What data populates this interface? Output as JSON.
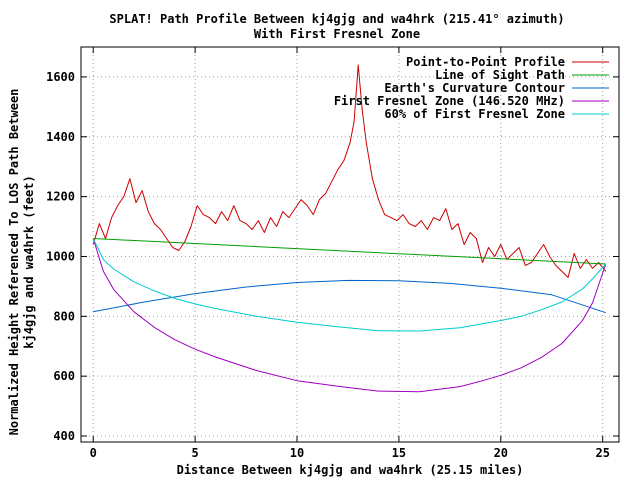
{
  "chart_data": {
    "type": "line",
    "title_line1": "SPLAT! Path Profile Between kj4gjg and wa4hrk (215.41° azimuth)",
    "title_line2": "With First Fresnel Zone",
    "xlabel": "Distance Between kj4gjg and wa4hrk (25.15 miles)",
    "ylabel_line1": "Normalized Height Referenced To LOS Path Between",
    "ylabel_line2": "kj4gjg and wa4hrk (feet)",
    "xlim": [
      -0.6,
      25.8
    ],
    "ylim": [
      380,
      1700
    ],
    "x_ticks": [
      "0",
      "5",
      "10",
      "15",
      "20",
      "25"
    ],
    "y_ticks": [
      "400",
      "600",
      "800",
      "1000",
      "1200",
      "1400",
      "1600"
    ],
    "grid": true,
    "legend_position": "top-right",
    "series": [
      {
        "name": "Point-to-Point Profile",
        "color": "#cc0000",
        "x": [
          0,
          0.3,
          0.6,
          0.9,
          1.2,
          1.5,
          1.8,
          2.1,
          2.4,
          2.7,
          3.0,
          3.3,
          3.6,
          3.9,
          4.2,
          4.5,
          4.8,
          5.1,
          5.4,
          5.7,
          6.0,
          6.3,
          6.6,
          6.9,
          7.2,
          7.5,
          7.8,
          8.1,
          8.4,
          8.7,
          9.0,
          9.3,
          9.6,
          9.9,
          10.2,
          10.5,
          10.8,
          11.1,
          11.4,
          11.7,
          12.0,
          12.3,
          12.6,
          12.8,
          13.0,
          13.2,
          13.4,
          13.7,
          14.0,
          14.3,
          14.6,
          14.9,
          15.2,
          15.5,
          15.8,
          16.1,
          16.4,
          16.7,
          17.0,
          17.3,
          17.6,
          17.9,
          18.2,
          18.5,
          18.8,
          19.1,
          19.4,
          19.7,
          20.0,
          20.3,
          20.6,
          20.9,
          21.2,
          21.5,
          21.8,
          22.1,
          22.4,
          22.7,
          23.0,
          23.3,
          23.6,
          23.9,
          24.2,
          24.5,
          24.8,
          25.15
        ],
        "y": [
          1040,
          1110,
          1060,
          1130,
          1170,
          1200,
          1260,
          1180,
          1220,
          1150,
          1110,
          1090,
          1060,
          1030,
          1020,
          1050,
          1100,
          1170,
          1140,
          1130,
          1110,
          1150,
          1120,
          1170,
          1120,
          1110,
          1090,
          1120,
          1080,
          1130,
          1100,
          1150,
          1130,
          1160,
          1190,
          1170,
          1140,
          1190,
          1210,
          1250,
          1290,
          1320,
          1380,
          1450,
          1640,
          1490,
          1380,
          1260,
          1190,
          1140,
          1130,
          1120,
          1140,
          1110,
          1100,
          1120,
          1090,
          1130,
          1120,
          1160,
          1090,
          1110,
          1040,
          1080,
          1060,
          980,
          1030,
          1000,
          1040,
          990,
          1010,
          1030,
          970,
          980,
          1010,
          1040,
          1000,
          970,
          950,
          930,
          1010,
          960,
          990,
          960,
          980,
          950
        ]
      },
      {
        "name": "Line of Sight Path",
        "color": "#00a000",
        "x": [
          0,
          25.15
        ],
        "y": [
          1060,
          975
        ]
      },
      {
        "name": "Earth's Curvature Contour",
        "color": "#0066cc",
        "x": [
          0,
          2.5,
          5,
          7.5,
          10,
          12.5,
          15,
          17.5,
          20,
          22.5,
          25.15
        ],
        "y": [
          815,
          848,
          876,
          898,
          913,
          920,
          919,
          910,
          894,
          872,
          812
        ]
      },
      {
        "name": "First Fresnel Zone (146.520 MHz)",
        "color": "#a000c0",
        "x": [
          0,
          0.5,
          1,
          2,
          3,
          4,
          5,
          6,
          8,
          10,
          12,
          14,
          16,
          18,
          19,
          20,
          21,
          22,
          23,
          24,
          24.5,
          25.15
        ],
        "y": [
          1060,
          950,
          890,
          815,
          763,
          722,
          690,
          664,
          619,
          585,
          566,
          550,
          548,
          565,
          583,
          603,
          628,
          663,
          709,
          785,
          845,
          975
        ]
      },
      {
        "name": "60% of First Fresnel Zone",
        "color": "#00cccc",
        "x": [
          0,
          0.5,
          1,
          2,
          3,
          4,
          5,
          6,
          8,
          10,
          12,
          14,
          16,
          18,
          19,
          20,
          21,
          22,
          23,
          24,
          24.5,
          25.15
        ],
        "y": [
          1060,
          990,
          958,
          915,
          885,
          860,
          841,
          826,
          800,
          780,
          765,
          752,
          751,
          762,
          774,
          786,
          800,
          822,
          848,
          891,
          925,
          975
        ]
      }
    ]
  }
}
